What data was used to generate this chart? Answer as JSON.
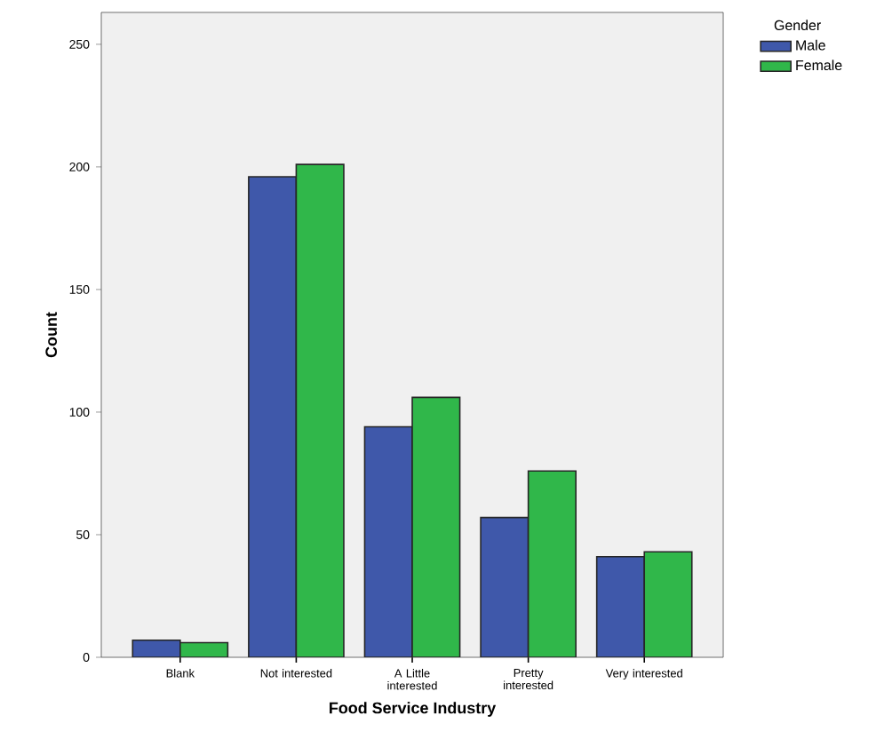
{
  "chart_data": {
    "type": "bar",
    "xlabel": "Food Service Industry",
    "ylabel": "Count",
    "legend_title": "Gender",
    "categories": [
      "Blank",
      "Not interested",
      "A Little interested",
      "Pretty interested",
      "Very interested"
    ],
    "series": [
      {
        "name": "Male",
        "color": "#3f58aa",
        "values": [
          7,
          196,
          94,
          57,
          41
        ]
      },
      {
        "name": "Female",
        "color": "#30b74a",
        "values": [
          6,
          201,
          106,
          76,
          43
        ]
      }
    ],
    "ylim": [
      0,
      263
    ],
    "yticks": [
      0,
      50,
      100,
      150,
      200,
      250
    ],
    "grid": false,
    "legend": "top right"
  }
}
